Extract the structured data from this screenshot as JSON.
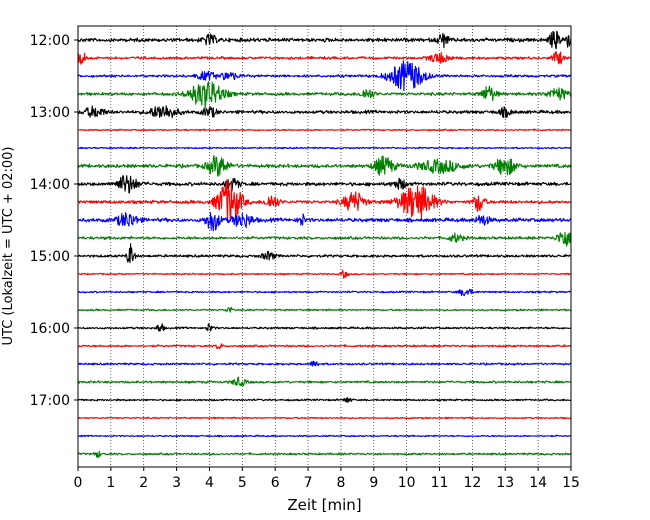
{
  "chart_data": {
    "type": "line",
    "title": "",
    "xlabel": "Zeit  [min]",
    "ylabel": "UTC (Lokalzeit = UTC + 02:00)",
    "xlim": [
      0,
      15
    ],
    "x_ticks": [
      0,
      1,
      2,
      3,
      4,
      5,
      6,
      7,
      8,
      9,
      10,
      11,
      12,
      13,
      14,
      15
    ],
    "y_ticks": [
      "12:00",
      "13:00",
      "14:00",
      "15:00",
      "16:00",
      "17:00"
    ],
    "grid": "vertical dotted lines at each minute",
    "row_interval_min": 15,
    "color_cycle": [
      "#000000",
      "#ff0000",
      "#0000ff",
      "#008000"
    ],
    "rows": [
      {
        "time": "12:00",
        "color": "#000000",
        "noise": 1.5,
        "events": [
          {
            "t": 4.0,
            "amp": 5,
            "dur": 0.2
          },
          {
            "t": 11.1,
            "amp": 7,
            "dur": 0.15
          },
          {
            "t": 14.5,
            "amp": 9,
            "dur": 0.15
          },
          {
            "t": 14.9,
            "amp": 6,
            "dur": 0.15
          }
        ]
      },
      {
        "time": "12:15",
        "color": "#ff0000",
        "noise": 1.0,
        "events": [
          {
            "t": 0.1,
            "amp": 6,
            "dur": 0.15
          },
          {
            "t": 11.0,
            "amp": 5,
            "dur": 0.3
          },
          {
            "t": 14.6,
            "amp": 7,
            "dur": 0.15
          }
        ]
      },
      {
        "time": "12:30",
        "color": "#0000ff",
        "noise": 1.0,
        "events": [
          {
            "t": 3.9,
            "amp": 4,
            "dur": 0.3
          },
          {
            "t": 4.6,
            "amp": 4,
            "dur": 0.25
          },
          {
            "t": 10.0,
            "amp": 15,
            "dur": 0.5
          }
        ]
      },
      {
        "time": "12:45",
        "color": "#008000",
        "noise": 1.2,
        "events": [
          {
            "t": 3.9,
            "amp": 13,
            "dur": 0.5
          },
          {
            "t": 8.8,
            "amp": 5,
            "dur": 0.2
          },
          {
            "t": 12.5,
            "amp": 8,
            "dur": 0.2
          },
          {
            "t": 14.6,
            "amp": 6,
            "dur": 0.3
          }
        ]
      },
      {
        "time": "13:00",
        "color": "#000000",
        "noise": 1.3,
        "events": [
          {
            "t": 0.5,
            "amp": 5,
            "dur": 0.3
          },
          {
            "t": 2.6,
            "amp": 7,
            "dur": 0.4
          },
          {
            "t": 4.0,
            "amp": 5,
            "dur": 0.2
          },
          {
            "t": 13.0,
            "amp": 4,
            "dur": 0.2
          }
        ]
      },
      {
        "time": "13:15",
        "color": "#ff0000",
        "noise": 0.6,
        "events": []
      },
      {
        "time": "13:30",
        "color": "#0000ff",
        "noise": 0.6,
        "events": []
      },
      {
        "time": "13:45",
        "color": "#008000",
        "noise": 1.4,
        "events": [
          {
            "t": 4.25,
            "amp": 10,
            "dur": 0.3
          },
          {
            "t": 9.3,
            "amp": 9,
            "dur": 0.3
          },
          {
            "t": 11.0,
            "amp": 6,
            "dur": 0.6
          },
          {
            "t": 13.0,
            "amp": 9,
            "dur": 0.3
          }
        ]
      },
      {
        "time": "14:00",
        "color": "#000000",
        "noise": 1.4,
        "events": [
          {
            "t": 1.5,
            "amp": 9,
            "dur": 0.3
          },
          {
            "t": 4.7,
            "amp": 6,
            "dur": 0.2
          },
          {
            "t": 9.8,
            "amp": 5,
            "dur": 0.2
          }
        ]
      },
      {
        "time": "14:15",
        "color": "#ff0000",
        "noise": 1.3,
        "events": [
          {
            "t": 4.6,
            "amp": 22,
            "dur": 0.35
          },
          {
            "t": 5.9,
            "amp": 7,
            "dur": 0.2
          },
          {
            "t": 8.4,
            "amp": 10,
            "dur": 0.3
          },
          {
            "t": 10.3,
            "amp": 17,
            "dur": 0.5
          },
          {
            "t": 12.2,
            "amp": 10,
            "dur": 0.15
          }
        ]
      },
      {
        "time": "14:30",
        "color": "#0000ff",
        "noise": 1.5,
        "events": [
          {
            "t": 1.5,
            "amp": 7,
            "dur": 0.3
          },
          {
            "t": 4.1,
            "amp": 11,
            "dur": 0.2
          },
          {
            "t": 5.0,
            "amp": 7,
            "dur": 0.3
          },
          {
            "t": 6.8,
            "amp": 6,
            "dur": 0.1
          },
          {
            "t": 12.3,
            "amp": 5,
            "dur": 0.2
          }
        ]
      },
      {
        "time": "14:45",
        "color": "#008000",
        "noise": 1.1,
        "events": [
          {
            "t": 11.5,
            "amp": 4,
            "dur": 0.2
          },
          {
            "t": 14.8,
            "amp": 9,
            "dur": 0.2
          }
        ]
      },
      {
        "time": "15:00",
        "color": "#000000",
        "noise": 1.0,
        "events": [
          {
            "t": 1.6,
            "amp": 12,
            "dur": 0.1
          },
          {
            "t": 5.8,
            "amp": 4,
            "dur": 0.2
          }
        ]
      },
      {
        "time": "15:15",
        "color": "#ff0000",
        "noise": 0.6,
        "events": [
          {
            "t": 8.1,
            "amp": 4,
            "dur": 0.1
          }
        ]
      },
      {
        "time": "15:30",
        "color": "#0000ff",
        "noise": 0.7,
        "events": [
          {
            "t": 11.8,
            "amp": 4,
            "dur": 0.2
          }
        ]
      },
      {
        "time": "15:45",
        "color": "#008000",
        "noise": 0.7,
        "events": [
          {
            "t": 4.6,
            "amp": 3,
            "dur": 0.1
          }
        ]
      },
      {
        "time": "16:00",
        "color": "#000000",
        "noise": 0.8,
        "events": [
          {
            "t": 2.5,
            "amp": 5,
            "dur": 0.1
          },
          {
            "t": 4.0,
            "amp": 4,
            "dur": 0.1
          }
        ]
      },
      {
        "time": "16:15",
        "color": "#ff0000",
        "noise": 0.8,
        "events": [
          {
            "t": 4.3,
            "amp": 3,
            "dur": 0.1
          }
        ]
      },
      {
        "time": "16:30",
        "color": "#0000ff",
        "noise": 0.8,
        "events": [
          {
            "t": 7.2,
            "amp": 4,
            "dur": 0.1
          }
        ]
      },
      {
        "time": "16:45",
        "color": "#008000",
        "noise": 0.9,
        "events": [
          {
            "t": 4.9,
            "amp": 4,
            "dur": 0.2
          }
        ]
      },
      {
        "time": "17:00",
        "color": "#000000",
        "noise": 0.7,
        "events": [
          {
            "t": 8.2,
            "amp": 3,
            "dur": 0.1
          }
        ]
      },
      {
        "time": "17:15",
        "color": "#ff0000",
        "noise": 0.6,
        "events": []
      },
      {
        "time": "17:30",
        "color": "#0000ff",
        "noise": 0.6,
        "events": []
      },
      {
        "time": "17:45",
        "color": "#008000",
        "noise": 0.8,
        "events": [
          {
            "t": 0.6,
            "amp": 3,
            "dur": 0.1
          }
        ]
      }
    ]
  }
}
